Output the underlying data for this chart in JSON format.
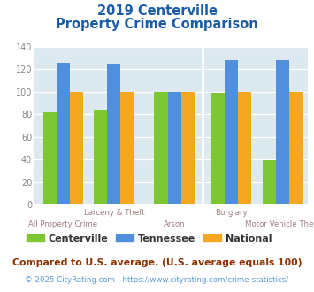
{
  "title_line1": "2019 Centerville",
  "title_line2": "Property Crime Comparison",
  "categories": [
    "All Property Crime",
    "Larceny & Theft",
    "Arson",
    "Burglary",
    "Motor Vehicle Theft"
  ],
  "centerville": [
    82,
    84,
    100,
    99,
    39
  ],
  "tennessee": [
    126,
    125,
    100,
    128,
    128
  ],
  "national": [
    100,
    100,
    100,
    100,
    100
  ],
  "color_centerville": "#7dc832",
  "color_tennessee": "#4f8fdb",
  "color_national": "#f5a623",
  "ylim": [
    0,
    140
  ],
  "yticks": [
    0,
    20,
    40,
    60,
    80,
    100,
    120,
    140
  ],
  "plot_bg": "#dce9ef",
  "fig_bg": "#ffffff",
  "title_color": "#1a5ca8",
  "xlabel_color": "#a08080",
  "footnote": "Compared to U.S. average. (U.S. average equals 100)",
  "footnote2": "© 2025 CityRating.com - https://www.cityrating.com/crime-statistics/",
  "footnote_color": "#8b3000",
  "footnote2_color": "#5b9bd5",
  "legend_labels": [
    "Centerville",
    "Tennessee",
    "National"
  ],
  "legend_text_color": "#333333",
  "bar_width": 0.21
}
